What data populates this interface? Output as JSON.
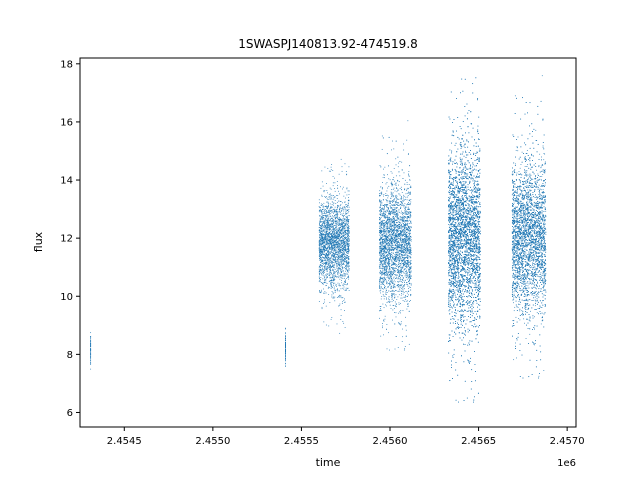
{
  "chart_data": {
    "type": "scatter",
    "title": "1SWASPJ140813.92-474519.8",
    "xlabel": "time",
    "ylabel": "flux",
    "x_offset_label": "1e6",
    "x_multiplier": 1000000,
    "xlim": [
      2.45425,
      2.45705
    ],
    "ylim": [
      5.5,
      18.2
    ],
    "xticks": [
      2.4545,
      2.455,
      2.4555,
      2.456,
      2.4565,
      2.457
    ],
    "xtick_labels": [
      "2.4545",
      "2.4550",
      "2.4555",
      "2.4560",
      "2.4565",
      "2.4570"
    ],
    "yticks": [
      6,
      8,
      10,
      12,
      14,
      16,
      18
    ],
    "ytick_labels": [
      "6",
      "8",
      "10",
      "12",
      "14",
      "16",
      "18"
    ],
    "grid": false,
    "marker_color": "#1f77b4",
    "observing_clusters": [
      {
        "x_start": 2.45431,
        "x_end": 2.45431,
        "y_center": 8.2,
        "y_spread": 0.6,
        "density": 60
      },
      {
        "x_start": 2.45541,
        "x_end": 2.45541,
        "y_center": 8.2,
        "y_spread": 0.6,
        "density": 80
      },
      {
        "x_start": 2.4556,
        "x_end": 2.45577,
        "y_center": 11.8,
        "y_spread": 1.7,
        "density": 2500
      },
      {
        "x_start": 2.45594,
        "x_end": 2.45612,
        "y_center": 11.8,
        "y_spread": 2.2,
        "density": 3000
      },
      {
        "x_start": 2.45633,
        "x_end": 2.45651,
        "y_center": 12.0,
        "y_spread": 3.4,
        "density": 6000
      },
      {
        "x_start": 2.45669,
        "x_end": 2.45688,
        "y_center": 12.0,
        "y_spread": 2.9,
        "density": 4500
      }
    ]
  }
}
